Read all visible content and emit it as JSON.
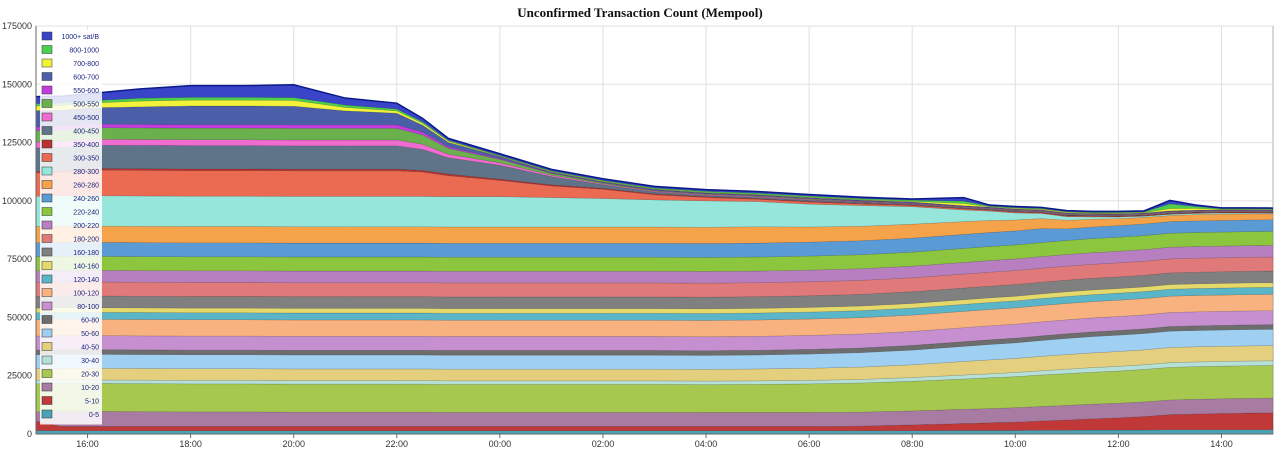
{
  "chart_data": {
    "type": "area",
    "stacked": true,
    "title": "Unconfirmed Transaction Count (Mempool)",
    "xlabel": "",
    "ylabel": "",
    "ylim": [
      0,
      175000
    ],
    "yticks": [
      0,
      25000,
      50000,
      75000,
      100000,
      125000,
      150000,
      175000
    ],
    "yticks_labels": [
      "0",
      "25000",
      "50000",
      "75000",
      "100000",
      "125000",
      "150000",
      "175000"
    ],
    "xlim_hours": [
      15.0,
      39.0
    ],
    "xticks_labels": [
      "16:00",
      "18:00",
      "20:00",
      "22:00",
      "00:00",
      "02:00",
      "04:00",
      "06:00",
      "08:00",
      "10:00",
      "12:00",
      "14:00"
    ],
    "grid": true,
    "legend_placement": "top-left",
    "x_hours": [
      15.0,
      15.5,
      16.0,
      17.0,
      18.0,
      19.0,
      20.0,
      21.0,
      22.0,
      22.5,
      23.0,
      24.0,
      25.0,
      26.0,
      27.0,
      28.0,
      29.0,
      30.0,
      31.0,
      32.0,
      33.0,
      33.5,
      34.0,
      34.5,
      35.0,
      35.5,
      36.0,
      36.5,
      37.0,
      37.5,
      38.0,
      38.5,
      39.0
    ],
    "series": [
      {
        "name": "0-5",
        "color": "#4aa3b5",
        "values": [
          1500,
          1400,
          1400,
          1400,
          1400,
          1400,
          1400,
          1400,
          1400,
          1400,
          1400,
          1400,
          1400,
          1400,
          1400,
          1400,
          1400,
          1400,
          1400,
          1400,
          1500,
          1500,
          1500,
          1600,
          1600,
          1700,
          1700,
          1700,
          1800,
          1800,
          1800,
          1800,
          1800
        ]
      },
      {
        "name": "5-10",
        "color": "#c03838",
        "values": [
          4000,
          1800,
          1800,
          1800,
          1800,
          1800,
          1800,
          1800,
          1800,
          1800,
          1800,
          1800,
          1800,
          1800,
          1800,
          1800,
          1800,
          1800,
          2000,
          2500,
          3000,
          3300,
          3600,
          4000,
          4400,
          4800,
          5200,
          5800,
          6500,
          6800,
          7000,
          7200,
          7300
        ]
      },
      {
        "name": "10-20",
        "color": "#a87ba3",
        "values": [
          4000,
          6500,
          6500,
          6400,
          6300,
          6300,
          6200,
          6200,
          6200,
          6200,
          6100,
          6100,
          6100,
          6100,
          6100,
          6000,
          6000,
          6000,
          6000,
          6000,
          6100,
          6100,
          6200,
          6200,
          6300,
          6300,
          6300,
          6300,
          6300,
          6300,
          6300,
          6300,
          6300
        ]
      },
      {
        "name": "20-30",
        "color": "#a7c84f",
        "values": [
          12000,
          12000,
          12000,
          12000,
          12000,
          12000,
          12000,
          12000,
          12000,
          12000,
          12000,
          12000,
          12000,
          12000,
          12000,
          12000,
          12100,
          12300,
          12500,
          12700,
          13000,
          13200,
          13300,
          13500,
          13600,
          13700,
          13800,
          13900,
          14000,
          14000,
          14000,
          14000,
          14000
        ]
      },
      {
        "name": "30-40",
        "color": "#b5e0d8",
        "values": [
          1500,
          1500,
          1500,
          1500,
          1500,
          1500,
          1500,
          1500,
          1500,
          1500,
          1500,
          1500,
          1500,
          1500,
          1500,
          1500,
          1500,
          1500,
          1500,
          1600,
          1700,
          1700,
          1800,
          1800,
          1900,
          2000,
          2000,
          2000,
          2000,
          2000,
          2000,
          2000,
          2000
        ]
      },
      {
        "name": "40-50",
        "color": "#e3cf7e",
        "values": [
          5000,
          5000,
          5000,
          5000,
          5000,
          5000,
          5000,
          5000,
          5000,
          5000,
          5000,
          5000,
          5000,
          5000,
          5000,
          5000,
          5100,
          5200,
          5300,
          5500,
          5800,
          6000,
          6000,
          6200,
          6300,
          6300,
          6400,
          6400,
          6500,
          6500,
          6500,
          6500,
          6500
        ]
      },
      {
        "name": "50-60",
        "color": "#9fd0f2",
        "values": [
          6000,
          6000,
          6000,
          6000,
          6000,
          6000,
          6000,
          6000,
          6000,
          6000,
          6000,
          6000,
          6000,
          6000,
          6000,
          6000,
          6000,
          6100,
          6200,
          6300,
          6500,
          6600,
          6700,
          6800,
          6900,
          7000,
          7000,
          7000,
          7000,
          7000,
          7000,
          7000,
          7000
        ]
      },
      {
        "name": "60-80",
        "color": "#6d6d6d",
        "values": [
          2000,
          2000,
          2000,
          2000,
          2000,
          2000,
          2000,
          2000,
          2000,
          2000,
          2000,
          2000,
          2000,
          2000,
          2000,
          2000,
          2000,
          2000,
          2000,
          2000,
          2000,
          2000,
          2000,
          2000,
          2000,
          2000,
          2000,
          2000,
          2000,
          2000,
          2000,
          2000,
          2000
        ]
      },
      {
        "name": "80-100",
        "color": "#c58fd0",
        "values": [
          6000,
          6000,
          6000,
          6000,
          6000,
          6000,
          6000,
          6000,
          6000,
          6000,
          6000,
          6000,
          6000,
          6000,
          6000,
          6000,
          6000,
          6000,
          6000,
          6000,
          6000,
          6000,
          6000,
          6000,
          6000,
          6000,
          6000,
          6000,
          6000,
          6000,
          6000,
          6000,
          6000
        ]
      },
      {
        "name": "100-120",
        "color": "#f7b27f",
        "values": [
          7000,
          7000,
          7000,
          7000,
          7000,
          7000,
          7000,
          7000,
          7000,
          7000,
          7000,
          7000,
          7000,
          7000,
          7000,
          7000,
          7000,
          7000,
          7000,
          7000,
          7000,
          7000,
          7000,
          7000,
          7000,
          7000,
          7000,
          7000,
          7000,
          7000,
          7000,
          7000,
          7000
        ]
      },
      {
        "name": "120-140",
        "color": "#5ab5c8",
        "values": [
          3000,
          3000,
          3000,
          3000,
          3000,
          3000,
          3000,
          3000,
          3000,
          3000,
          3000,
          3000,
          3000,
          3000,
          3000,
          3000,
          3000,
          3000,
          3000,
          3000,
          3000,
          3000,
          3000,
          3000,
          3000,
          3000,
          3000,
          3000,
          3000,
          3000,
          3000,
          3000,
          3000
        ]
      },
      {
        "name": "140-160",
        "color": "#e6d96b",
        "values": [
          2000,
          2000,
          2000,
          2000,
          2000,
          2000,
          2000,
          2000,
          2000,
          2000,
          2000,
          2000,
          2000,
          2000,
          2000,
          2000,
          2000,
          2000,
          2000,
          2000,
          2000,
          2000,
          2000,
          2000,
          2000,
          2000,
          2000,
          2000,
          2000,
          2000,
          2000,
          2000,
          2000
        ]
      },
      {
        "name": "160-180",
        "color": "#808080",
        "values": [
          5000,
          5000,
          5000,
          5000,
          5000,
          5000,
          5000,
          5000,
          5000,
          5000,
          5000,
          5000,
          5000,
          5000,
          5000,
          5000,
          5000,
          5000,
          5000,
          5000,
          5000,
          5000,
          5000,
          5000,
          5000,
          5000,
          5000,
          5000,
          5000,
          5000,
          5000,
          5000,
          5000
        ]
      },
      {
        "name": "180-200",
        "color": "#e07a7a",
        "values": [
          6000,
          6000,
          6000,
          6000,
          6000,
          6000,
          6000,
          6000,
          6000,
          6000,
          6000,
          6000,
          6000,
          6000,
          6000,
          6000,
          6000,
          6000,
          6000,
          6000,
          6000,
          6000,
          6000,
          6000,
          6000,
          6000,
          6000,
          6000,
          6000,
          6000,
          6000,
          6000,
          6000
        ]
      },
      {
        "name": "200-220",
        "color": "#b77fbf",
        "values": [
          5000,
          5000,
          5000,
          5000,
          5000,
          5000,
          5000,
          5000,
          5000,
          5000,
          5000,
          5000,
          5000,
          5000,
          5000,
          5000,
          5000,
          5000,
          5000,
          5000,
          5000,
          5000,
          5000,
          5000,
          5000,
          5000,
          5000,
          5000,
          5000,
          5000,
          5000,
          5000,
          5000
        ]
      },
      {
        "name": "220-240",
        "color": "#8cc63f",
        "values": [
          6000,
          6000,
          6000,
          6000,
          6000,
          6000,
          6000,
          6000,
          6000,
          6000,
          6000,
          6000,
          6000,
          6000,
          6000,
          6000,
          6000,
          6000,
          6000,
          6000,
          6000,
          6000,
          6000,
          6000,
          6000,
          6000,
          6000,
          6000,
          6000,
          6000,
          6000,
          6000,
          6000
        ]
      },
      {
        "name": "240-260",
        "color": "#5b9bd5",
        "values": [
          6000,
          6000,
          6000,
          6000,
          6000,
          6000,
          6000,
          6000,
          6000,
          6000,
          6000,
          6000,
          6000,
          6000,
          6000,
          6000,
          6000,
          6000,
          6000,
          6000,
          6000,
          6000,
          6000,
          6000,
          5000,
          5000,
          5000,
          5000,
          5000,
          5000,
          5000,
          5000,
          5000
        ]
      },
      {
        "name": "260-280",
        "color": "#f5a34b",
        "values": [
          7000,
          7000,
          7000,
          7000,
          7000,
          7000,
          7000,
          7000,
          7000,
          7000,
          7000,
          7000,
          7000,
          7000,
          7000,
          7000,
          7000,
          6500,
          6200,
          6000,
          5500,
          5200,
          4700,
          4300,
          3700,
          3300,
          3000,
          2800,
          2600,
          2700,
          2700,
          2600,
          2500
        ]
      },
      {
        "name": "280-300",
        "color": "#96e6dc",
        "values": [
          13000,
          13000,
          13000,
          13000,
          13000,
          13000,
          13000,
          13000,
          13000,
          13000,
          13000,
          13000,
          12600,
          12200,
          11600,
          11300,
          10800,
          9800,
          8900,
          7500,
          5000,
          4000,
          3000,
          2200,
          1500,
          1000,
          700,
          500,
          500,
          500,
          500,
          400,
          300
        ]
      },
      {
        "name": "300-350",
        "color": "#ea6a52",
        "values": [
          10000,
          10000,
          11000,
          11000,
          11000,
          11000,
          11000,
          11000,
          11000,
          10500,
          9000,
          7000,
          5000,
          4000,
          2200,
          1500,
          1000,
          900,
          700,
          500,
          500,
          400,
          400,
          300,
          300,
          300,
          200,
          200,
          200,
          200,
          200,
          200,
          200
        ]
      },
      {
        "name": "350-400",
        "color": "#b83232",
        "values": [
          700,
          700,
          700,
          700,
          700,
          700,
          700,
          700,
          700,
          700,
          700,
          500,
          500,
          400,
          400,
          300,
          300,
          300,
          300,
          300,
          200,
          200,
          200,
          200,
          200,
          200,
          200,
          200,
          200,
          200,
          200,
          200,
          200
        ]
      },
      {
        "name": "400-450",
        "color": "#5f7488",
        "values": [
          10000,
          10000,
          10000,
          10000,
          10000,
          10000,
          10000,
          10000,
          10000,
          9000,
          7000,
          6000,
          3500,
          1500,
          800,
          500,
          500,
          500,
          400,
          300,
          300,
          300,
          300,
          300,
          300,
          200,
          200,
          200,
          300,
          200,
          200,
          200,
          200
        ]
      },
      {
        "name": "450-500",
        "color": "#f06cd0",
        "values": [
          2500,
          2500,
          2500,
          2500,
          2500,
          2500,
          2500,
          2500,
          2500,
          2200,
          1500,
          1000,
          600,
          400,
          300,
          300,
          300,
          300,
          200,
          200,
          200,
          200,
          200,
          200,
          200,
          200,
          200,
          200,
          200,
          200,
          200,
          200,
          200
        ]
      },
      {
        "name": "500-550",
        "color": "#6ab04c",
        "values": [
          5000,
          5000,
          5000,
          5000,
          5000,
          5000,
          5000,
          5000,
          5000,
          4000,
          2500,
          1500,
          800,
          400,
          300,
          300,
          300,
          300,
          200,
          200,
          200,
          200,
          200,
          200,
          200,
          200,
          200,
          200,
          200,
          200,
          200,
          200,
          200
        ]
      },
      {
        "name": "550-600",
        "color": "#c43ce0",
        "values": [
          1500,
          1500,
          1500,
          1500,
          1500,
          1500,
          1500,
          1500,
          1500,
          1200,
          600,
          400,
          200,
          200,
          200,
          200,
          200,
          200,
          200,
          200,
          200,
          200,
          200,
          200,
          200,
          200,
          200,
          200,
          200,
          200,
          200,
          200,
          200
        ]
      },
      {
        "name": "600-700",
        "color": "#4b5fa8",
        "values": [
          7000,
          7000,
          7000,
          7500,
          8000,
          8000,
          8000,
          6000,
          5000,
          3000,
          2000,
          800,
          400,
          300,
          300,
          300,
          300,
          300,
          300,
          300,
          200,
          200,
          200,
          200,
          200,
          200,
          200,
          200,
          200,
          200,
          200,
          200,
          200
        ]
      },
      {
        "name": "700-800",
        "color": "#f2f23a",
        "values": [
          2000,
          2000,
          2000,
          2500,
          2500,
          2500,
          2500,
          1500,
          1000,
          800,
          500,
          200,
          200,
          200,
          200,
          200,
          200,
          200,
          200,
          300,
          1000,
          200,
          300,
          300,
          300,
          200,
          300,
          200,
          1000,
          800,
          200,
          200,
          200
        ]
      },
      {
        "name": "800-1000",
        "color": "#4ccf4c",
        "values": [
          1000,
          1000,
          1000,
          1200,
          1200,
          1200,
          1200,
          1000,
          800,
          600,
          400,
          300,
          300,
          400,
          400,
          500,
          500,
          500,
          500,
          500,
          1000,
          300,
          300,
          300,
          300,
          300,
          300,
          300,
          2000,
          800,
          300,
          300,
          300
        ]
      },
      {
        "name": "1000+ sat/B",
        "color": "#3a44c8",
        "values": [
          3000,
          3000,
          3000,
          4000,
          5000,
          5000,
          5500,
          3000,
          2500,
          1500,
          800,
          700,
          600,
          700,
          700,
          700,
          700,
          600,
          600,
          500,
          1500,
          400,
          500,
          400,
          400,
          400,
          400,
          400,
          1500,
          600,
          300,
          300,
          300
        ]
      }
    ]
  }
}
